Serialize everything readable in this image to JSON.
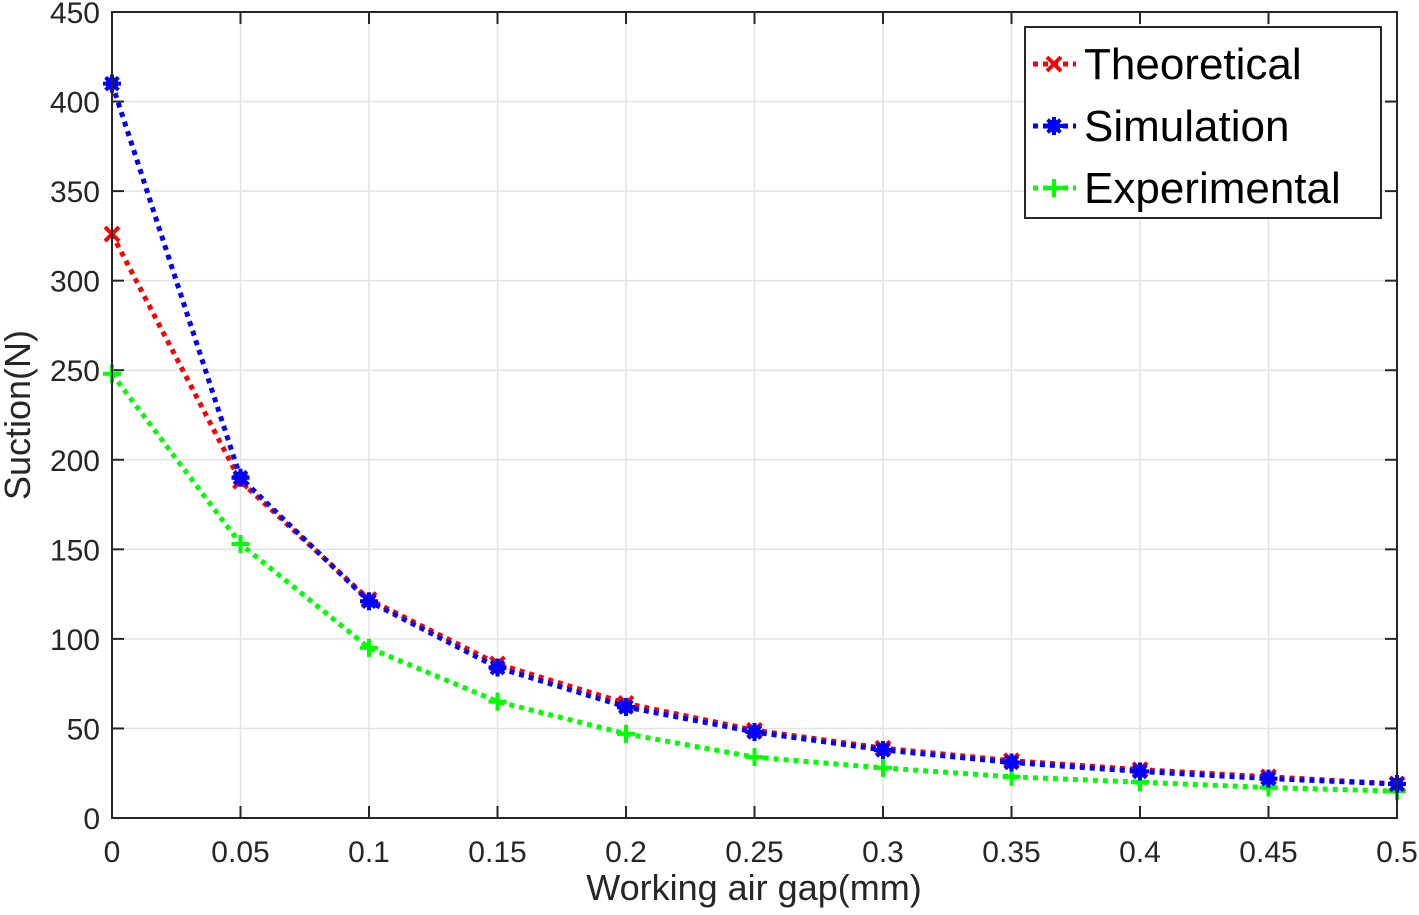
{
  "chart_data": {
    "type": "line",
    "title": "",
    "xlabel": "Working air gap(mm)",
    "ylabel": "Suction(N)",
    "xlim": [
      0,
      0.5
    ],
    "ylim": [
      0,
      450
    ],
    "x": [
      0,
      0.05,
      0.1,
      0.15,
      0.2,
      0.25,
      0.3,
      0.35,
      0.4,
      0.45,
      0.5
    ],
    "x_ticks": [
      "0",
      "0.05",
      "0.1",
      "0.15",
      "0.2",
      "0.25",
      "0.3",
      "0.35",
      "0.4",
      "0.45",
      "0.5"
    ],
    "y_ticks": [
      "0",
      "50",
      "100",
      "150",
      "200",
      "250",
      "300",
      "350",
      "400",
      "450"
    ],
    "grid": true,
    "legend_position": "top-right",
    "series": [
      {
        "name": "Theoretical",
        "color": "#ff0000",
        "marker": "x",
        "line_style": "dotted",
        "values": [
          326,
          188,
          122,
          86,
          64,
          49,
          39,
          32,
          27,
          23,
          19
        ]
      },
      {
        "name": "Simulation",
        "color": "#0000ff",
        "marker": "asterisk",
        "line_style": "dotted",
        "values": [
          410,
          190,
          121,
          84,
          62,
          48,
          38,
          31,
          26,
          22,
          19
        ]
      },
      {
        "name": "Experimental",
        "color": "#00ff00",
        "marker": "plus",
        "line_style": "dotted",
        "values": [
          248,
          153,
          95,
          65,
          47,
          34,
          28,
          23,
          20,
          17,
          15
        ]
      }
    ]
  }
}
